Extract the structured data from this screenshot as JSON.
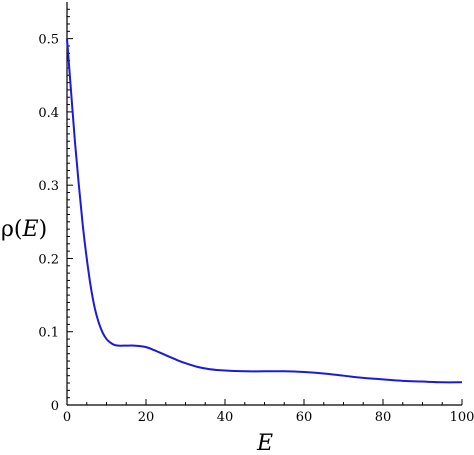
{
  "chart_data": {
    "type": "line",
    "title": "",
    "xlabel": "E",
    "ylabel_prefix": "ρ(",
    "ylabel_var": "E",
    "ylabel_suffix": ")",
    "xlim": [
      0,
      100
    ],
    "ylim": [
      0,
      0.55
    ],
    "x_ticks": [
      0,
      20,
      40,
      60,
      80,
      100
    ],
    "x_tick_labels": [
      "0",
      "20",
      "40",
      "60",
      "80",
      "100"
    ],
    "y_ticks": [
      0,
      0.1,
      0.2,
      0.3,
      0.4,
      0.5
    ],
    "y_tick_labels": [
      "0",
      "0.1",
      "0.2",
      "0.3",
      "0.4",
      "0.5"
    ],
    "grid": false,
    "legend": "none",
    "series": [
      {
        "color": "#1a1adf",
        "x": [
          0,
          1,
          2,
          3,
          4,
          5,
          6,
          7,
          8,
          9,
          10,
          11,
          12,
          13,
          15,
          17,
          20,
          22,
          25,
          28,
          30,
          33,
          36,
          40,
          45,
          50,
          55,
          60,
          65,
          70,
          75,
          80,
          85,
          90,
          95,
          100
        ],
        "y": [
          0.5,
          0.43,
          0.36,
          0.3,
          0.245,
          0.2,
          0.162,
          0.133,
          0.113,
          0.099,
          0.09,
          0.085,
          0.082,
          0.081,
          0.081,
          0.081,
          0.079,
          0.075,
          0.068,
          0.061,
          0.057,
          0.052,
          0.049,
          0.047,
          0.046,
          0.046,
          0.046,
          0.045,
          0.043,
          0.04,
          0.037,
          0.035,
          0.033,
          0.032,
          0.031,
          0.031
        ]
      }
    ]
  }
}
